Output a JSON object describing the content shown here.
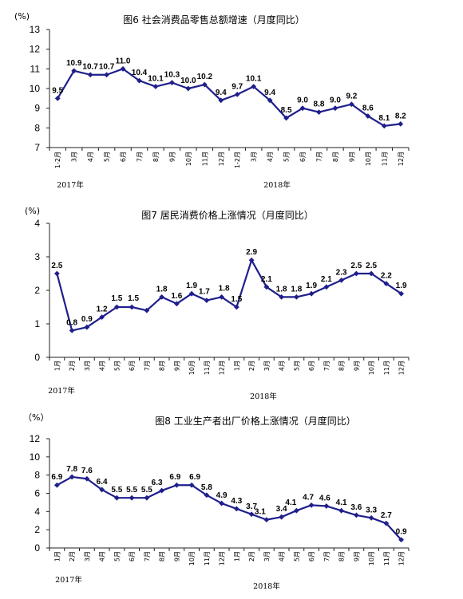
{
  "chart_data": [
    {
      "type": "line",
      "title": "图6  社会消费品零售总额增速（月度同比）",
      "unit": "(%)",
      "ylim": [
        7,
        13
      ],
      "yticks": [
        "7",
        "8",
        "9",
        "10",
        "11",
        "12",
        "13"
      ],
      "categories": [
        "1-2月",
        "3月",
        "4月",
        "5月",
        "6月",
        "7月",
        "8月",
        "9月",
        "10月",
        "11月",
        "12月",
        "1-2月",
        "3月",
        "4月",
        "5月",
        "6月",
        "7月",
        "8月",
        "9月",
        "10月",
        "11月",
        "12月"
      ],
      "year_labels": [
        "2017年",
        "2018年"
      ],
      "series": [
        {
          "values": [
            9.5,
            10.9,
            10.7,
            10.7,
            11.0,
            10.4,
            10.1,
            10.3,
            10.0,
            10.2,
            9.4,
            9.7,
            10.1,
            9.4,
            8.5,
            9.0,
            8.8,
            9.0,
            9.2,
            8.6,
            8.1,
            8.2
          ],
          "labels": [
            "9.5",
            "10.9",
            "10.7",
            "10.7",
            "11.0",
            "10.4",
            "10.1",
            "10.3",
            "10.0",
            "10.2",
            "9.4",
            "9.7",
            "10.1",
            "9.4",
            "8.5",
            "9.0",
            "8.8",
            "9.0",
            "9.2",
            "8.6",
            "8.1",
            "8.2"
          ]
        }
      ],
      "color": "#1f1f8c"
    },
    {
      "type": "line",
      "title": "图7   居民消费价格上涨情况（月度同比）",
      "unit": "(%)",
      "ylim": [
        0,
        4
      ],
      "yticks": [
        "0",
        "1",
        "2",
        "3",
        "4"
      ],
      "categories": [
        "1月",
        "2月",
        "3月",
        "4月",
        "5月",
        "6月",
        "7月",
        "8月",
        "9月",
        "10月",
        "11月",
        "12月",
        "1月",
        "2月",
        "3月",
        "4月",
        "5月",
        "6月",
        "7月",
        "8月",
        "9月",
        "10月",
        "11月",
        "12月"
      ],
      "year_labels": [
        "2017年",
        "2018年"
      ],
      "series": [
        {
          "values": [
            2.5,
            0.8,
            0.9,
            1.2,
            1.5,
            1.5,
            1.4,
            1.8,
            1.6,
            1.9,
            1.7,
            1.8,
            1.5,
            2.9,
            2.1,
            1.8,
            1.8,
            1.9,
            2.1,
            2.3,
            2.5,
            2.5,
            2.2,
            1.9
          ],
          "labels": [
            "2.5",
            "0.8",
            "0.9",
            "1.2",
            "1.5",
            "1.5",
            "",
            "1.8",
            "1.6",
            "1.9",
            "1.7",
            "1.8",
            "1.5",
            "2.9",
            "2.1",
            "1.8",
            "1.8",
            "1.9",
            "2.1",
            "2.3",
            "2.5",
            "2.5",
            "2.2",
            "1.9"
          ]
        }
      ],
      "color": "#1f1f8c"
    },
    {
      "type": "line",
      "title": "图8   工业生产者出厂价格上涨情况（月度同比）",
      "unit": "（%）",
      "ylim": [
        0,
        12
      ],
      "yticks": [
        "0",
        "2",
        "4",
        "6",
        "8",
        "10",
        "12"
      ],
      "categories": [
        "1月",
        "2月",
        "3月",
        "4月",
        "5月",
        "6月",
        "7月",
        "8月",
        "9月",
        "10月",
        "11月",
        "12月",
        "1月",
        "2月",
        "3月",
        "4月",
        "5月",
        "6月",
        "7月",
        "8月",
        "9月",
        "10月",
        "11月",
        "12月"
      ],
      "year_labels": [
        "2017年",
        "2018年"
      ],
      "series": [
        {
          "values": [
            6.9,
            7.8,
            7.6,
            6.4,
            5.5,
            5.5,
            5.5,
            6.3,
            6.9,
            6.9,
            5.8,
            4.9,
            4.3,
            3.7,
            3.1,
            3.4,
            4.1,
            4.7,
            4.6,
            4.1,
            3.6,
            3.3,
            2.7,
            0.9
          ],
          "labels": [
            "6.9",
            "7.8",
            "7.6",
            "6.4",
            "5.5",
            "5.5",
            "5.5",
            "6.3",
            "6.9",
            "6.9",
            "5.8",
            "4.9",
            "4.3",
            "3.7",
            "3.1",
            "3.4",
            "4.1",
            "4.7",
            "4.6",
            "4.1",
            "3.6",
            "3.3",
            "2.7",
            "0.9"
          ]
        }
      ],
      "color": "#1f1f8c"
    }
  ]
}
